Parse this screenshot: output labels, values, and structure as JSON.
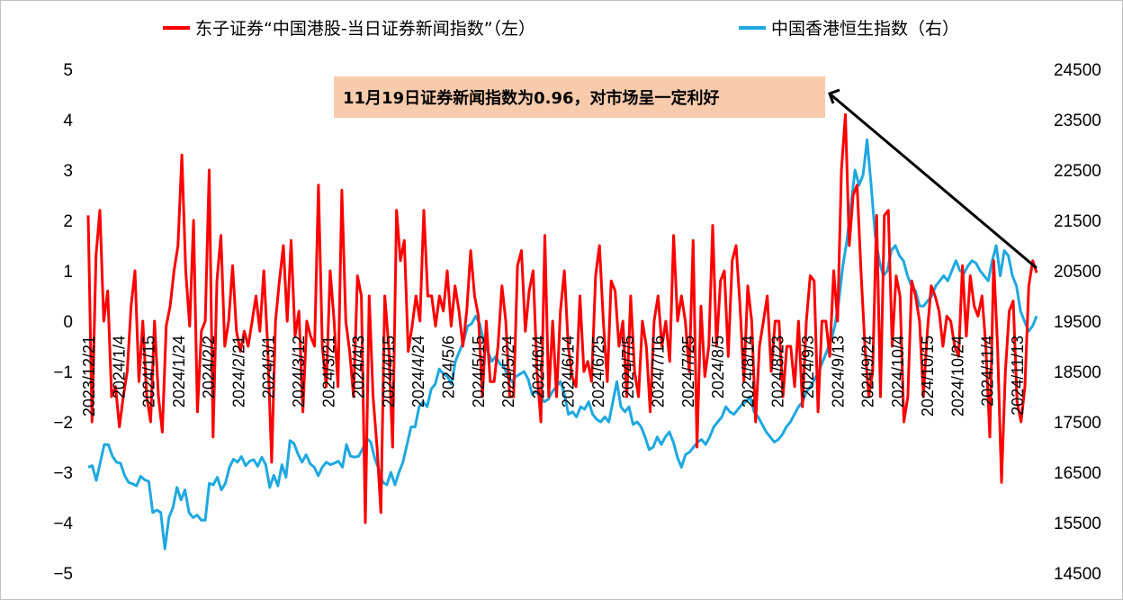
{
  "chart_data": {
    "type": "line",
    "series": [
      {
        "name": "东子证券“中国港股-当日证券新闻指数”（左）",
        "axis": "left",
        "color": "#ff0000",
        "values": [
          2.1,
          -2.0,
          1.3,
          2.2,
          0.0,
          0.6,
          -1.5,
          -1.3,
          -2.1,
          -1.5,
          -1.0,
          0.3,
          1.0,
          -1.2,
          0.0,
          -1.5,
          -2.0,
          0.0,
          -1.5,
          -2.2,
          -0.1,
          0.3,
          1.0,
          1.5,
          3.3,
          1.0,
          -0.1,
          2.0,
          -1.8,
          -0.2,
          0.0,
          3.0,
          -2.3,
          0.8,
          1.7,
          -0.5,
          0.0,
          1.1,
          -0.2,
          -0.6,
          -0.2,
          -0.5,
          0.0,
          0.5,
          -0.2,
          1.0,
          -0.5,
          -2.8,
          0.0,
          0.8,
          1.5,
          0.0,
          1.6,
          -0.3,
          0.2,
          -1.8,
          0.0,
          -0.3,
          -0.5,
          2.7,
          -0.5,
          -1.3,
          1.0,
          0.0,
          -1.3,
          2.6,
          0.0,
          -0.6,
          -1.5,
          0.9,
          0.5,
          -4.0,
          0.5,
          -1.5,
          -2.5,
          -3.8,
          0.5,
          -0.5,
          -2.5,
          2.2,
          1.2,
          1.6,
          -0.6,
          -0.1,
          0.5,
          0.0,
          2.2,
          0.5,
          0.5,
          -0.1,
          0.5,
          0.2,
          1.0,
          -0.1,
          0.7,
          0.2,
          -0.5,
          0.2,
          1.4,
          0.5,
          0.1,
          -1.5,
          0.0,
          -1.2,
          -1.2,
          -0.5,
          0.7,
          0.0,
          -1.5,
          -1.5,
          1.1,
          1.4,
          -0.2,
          0.6,
          1.0,
          -1.0,
          -2.0,
          1.7,
          -1.5,
          0.0,
          -1.5,
          0.2,
          1.0,
          -0.5,
          -1.1,
          -1.3,
          0.5,
          -1.0,
          -0.8,
          -1.2,
          0.9,
          1.5,
          0.0,
          -1.2,
          0.8,
          0.6,
          -0.5,
          0.0,
          -1.5,
          0.5,
          -1.0,
          -1.5,
          0.0,
          -0.5,
          -1.8,
          0.0,
          0.5,
          -0.5,
          0.0,
          -0.8,
          1.7,
          0.0,
          0.5,
          0.0,
          -1.0,
          1.6,
          -2.5,
          0.3,
          -1.1,
          -0.5,
          1.9,
          -0.5,
          0.8,
          1.0,
          -0.7,
          1.2,
          1.5,
          0.3,
          -1.2,
          0.7,
          0.0,
          -2.0,
          -0.5,
          0.0,
          0.5,
          -1.0,
          0.0,
          0.0,
          -1.5,
          -0.5,
          -0.5,
          -1.3,
          0.0,
          -1.7,
          0.0,
          0.9,
          0.8,
          -1.8,
          0.0,
          0.0,
          -0.7,
          1.0,
          0.0,
          3.0,
          4.1,
          1.5,
          2.5,
          2.7,
          1.0,
          -0.5,
          -1.5,
          -1.0,
          2.1,
          -1.5,
          2.1,
          2.2,
          -0.5,
          0.9,
          0.5,
          -2.0,
          -1.5,
          0.8,
          0.5,
          0.0,
          -1.5,
          -0.2,
          0.7,
          0.5,
          0.2,
          -0.5,
          0.1,
          0.0,
          -0.5,
          -0.7,
          1.1,
          -0.3,
          0.9,
          0.3,
          0.1,
          0.5,
          -0.5,
          -2.3,
          1.2,
          -0.5,
          -3.2,
          -1.0,
          0.2,
          0.4,
          -1.6,
          -2.0,
          -1.3,
          0.7,
          1.2,
          0.96
        ]
      },
      {
        "name": "中国香港恒生指数（右）",
        "axis": "right",
        "color": "#1ea8e0",
        "values": [
          16600,
          16630,
          16340,
          16700,
          17050,
          17050,
          16820,
          16700,
          16680,
          16440,
          16300,
          16270,
          16230,
          16420,
          16350,
          16320,
          15700,
          15750,
          15700,
          14980,
          15600,
          15800,
          16200,
          15950,
          16150,
          15700,
          15600,
          15650,
          15550,
          15550,
          16280,
          16250,
          16400,
          16150,
          16280,
          16600,
          16760,
          16700,
          16810,
          16630,
          16720,
          16750,
          16620,
          16800,
          16650,
          16200,
          16440,
          16230,
          16650,
          16400,
          17130,
          17070,
          16860,
          16700,
          16850,
          16670,
          16600,
          16430,
          16600,
          16700,
          16650,
          16680,
          16720,
          16600,
          17050,
          16820,
          16800,
          16820,
          16960,
          17170,
          17100,
          16780,
          16560,
          16300,
          16250,
          16500,
          16250,
          16500,
          16700,
          17050,
          17400,
          17400,
          17800,
          17900,
          17800,
          18150,
          18250,
          18550,
          18450,
          18400,
          18250,
          18700,
          18900,
          19100,
          19400,
          19450,
          19600,
          19450,
          19100,
          18900,
          18700,
          18800,
          18650,
          18600,
          18400,
          18300,
          18400,
          18450,
          18500,
          18350,
          18050,
          18100,
          18000,
          17900,
          17950,
          18100,
          18200,
          18300,
          18050,
          17650,
          17700,
          17600,
          17800,
          17750,
          17900,
          17650,
          17550,
          17500,
          17600,
          17500,
          17900,
          18300,
          17800,
          17700,
          17800,
          17450,
          17500,
          17400,
          17200,
          16950,
          17000,
          17200,
          17050,
          17200,
          17300,
          17100,
          16800,
          16600,
          16850,
          16900,
          17000,
          17100,
          17150,
          17050,
          17200,
          17400,
          17500,
          17600,
          17800,
          17700,
          17650,
          17750,
          17850,
          17900,
          18000,
          17700,
          17600,
          17450,
          17300,
          17200,
          17100,
          17150,
          17250,
          17400,
          17500,
          17650,
          17800,
          17900,
          18100,
          18200,
          18350,
          18500,
          18700,
          18900,
          19100,
          19400,
          19900,
          20600,
          21100,
          21800,
          22500,
          22200,
          22400,
          23100,
          22200,
          21200,
          20700,
          20400,
          20500,
          20900,
          21000,
          20800,
          20700,
          20400,
          20200,
          20100,
          19800,
          19800,
          19900,
          20000,
          20200,
          20300,
          20400,
          20300,
          20500,
          20700,
          20500,
          20450,
          20600,
          20700,
          20650,
          20500,
          20400,
          20300,
          20700,
          21000,
          20400,
          20900,
          20800,
          20400,
          20200,
          19700,
          19500,
          19300,
          19400,
          19600
        ]
      }
    ],
    "x_tick_labels": [
      "2023/12/21",
      "2024/1/4",
      "2024/1/15",
      "2024/1/24",
      "2024/2/2",
      "2024/2/21",
      "2024/3/1",
      "2024/3/12",
      "2024/3/21",
      "2024/4/3",
      "2024/4/15",
      "2024/4/24",
      "2024/5/6",
      "2024/5/15",
      "2024/5/24",
      "2024/6/4",
      "2024/6/14",
      "2024/6/25",
      "2024/7/5",
      "2024/7/16",
      "2024/7/25",
      "2024/8/5",
      "2024/8/14",
      "2024/8/23",
      "2024/9/3",
      "2024/9/13",
      "2024/9/24",
      "2024/10/4",
      "2024/10/15",
      "2024/10/24",
      "2024/11/4",
      "2024/11/13"
    ],
    "y_left": {
      "min": -5,
      "max": 5,
      "ticks": [
        "-5",
        "-4",
        "-3",
        "-2",
        "-1",
        "0",
        "1",
        "2",
        "3",
        "4",
        "5"
      ]
    },
    "y_right": {
      "min": 14500,
      "max": 24500,
      "ticks": [
        "14500",
        "15500",
        "16500",
        "17500",
        "18500",
        "19500",
        "20500",
        "21500",
        "22500",
        "23500",
        "24500"
      ]
    },
    "legend_placement": "top",
    "annotation": {
      "text": "11月19日证券新闻指数为0.96，对市场呈一定利好",
      "background": "#f8cbad",
      "arrow_color": "#000000"
    }
  }
}
